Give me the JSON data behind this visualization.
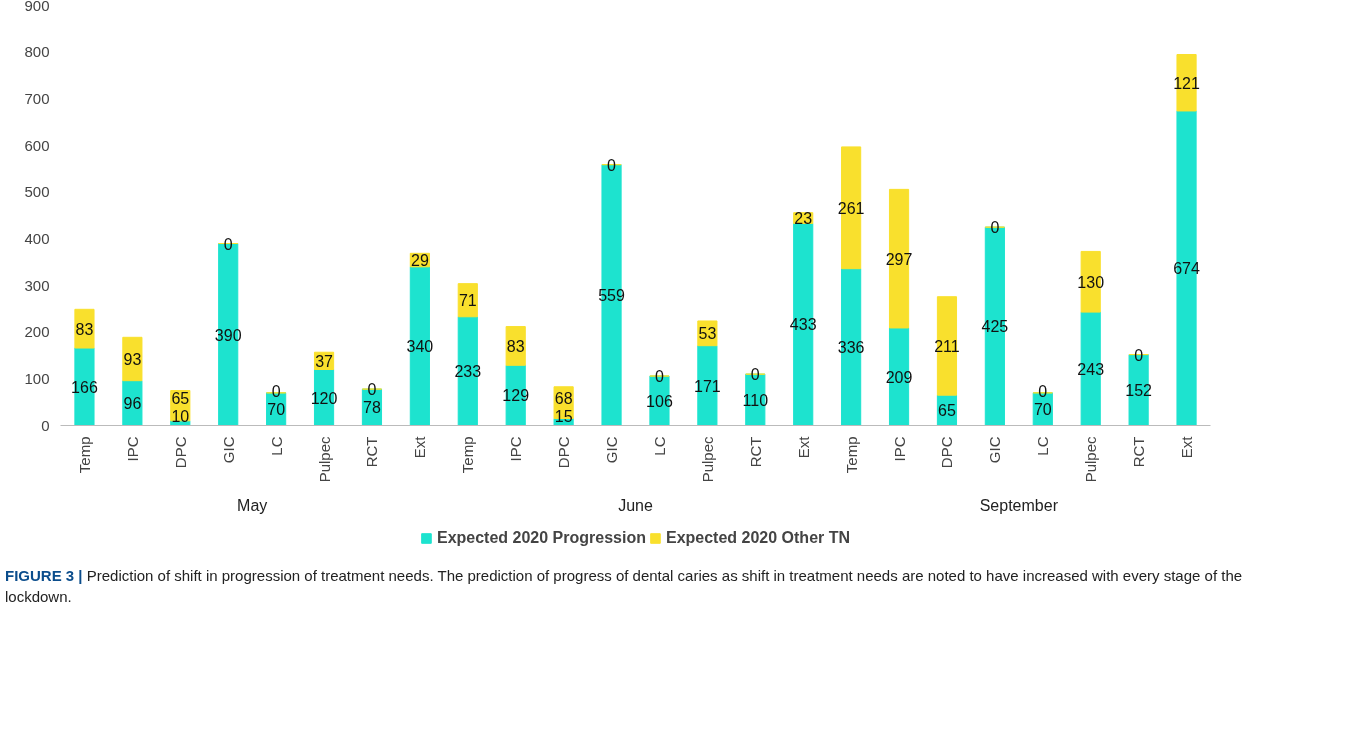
{
  "chart_data": {
    "type": "bar",
    "stacked": true,
    "data_labels": true,
    "legend": "bottom",
    "grid": false,
    "categories": [
      "Temp",
      "IPC",
      "DPC",
      "GIC",
      "LC",
      "Pulpec",
      "RCT",
      "Ext",
      "Temp",
      "IPC",
      "DPC",
      "GIC",
      "LC",
      "Pulpec",
      "RCT",
      "Ext",
      "Temp",
      "IPC",
      "DPC",
      "GIC",
      "LC",
      "Pulpec",
      "RCT",
      "Ext"
    ],
    "ylim": [
      0,
      900
    ],
    "yticks": [
      0,
      100,
      200,
      300,
      400,
      500,
      600,
      700,
      800,
      900
    ],
    "series": [
      {
        "name": "Expected 2020 Progression",
        "color": "#1de3cf",
        "values": [
          166,
          96,
          10,
          390,
          70,
          120,
          78,
          340,
          233,
          129,
          15,
          559,
          106,
          171,
          110,
          433,
          336,
          209,
          65,
          425,
          70,
          243,
          152,
          674
        ]
      },
      {
        "name": "Expected 2020 Other TN",
        "color": "#f9e02d",
        "values": [
          83,
          93,
          65,
          0,
          0,
          37,
          0,
          29,
          71,
          83,
          68,
          0,
          0,
          53,
          0,
          23,
          261,
          297,
          211,
          0,
          0,
          130,
          0,
          121
        ]
      }
    ],
    "annotations": [
      "May",
      "June",
      "September",
      "FIGURE 3 | Prediction of shift in progression of treatment needs. The prediction of progress of dental caries as shift in treatment needs are noted to have increased with every stage of the lockdown."
    ]
  }
}
